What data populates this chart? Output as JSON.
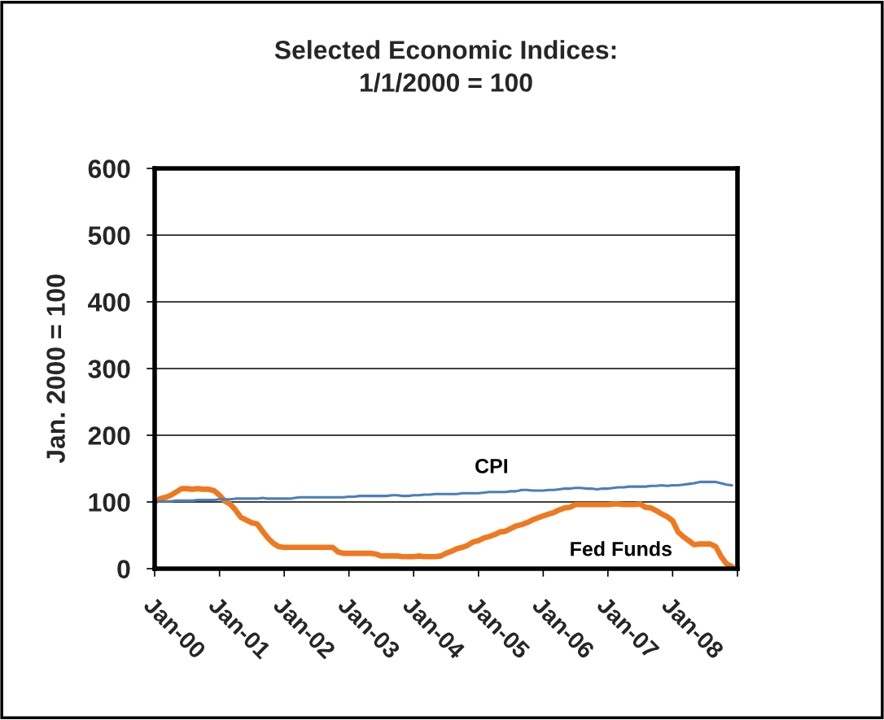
{
  "chart_data": {
    "type": "line",
    "title": "Selected Economic Indices:\n1/1/2000 = 100",
    "ylabel": "Jan. 2000 = 100",
    "x": [
      "2000-01",
      "2000-02",
      "2000-03",
      "2000-04",
      "2000-05",
      "2000-06",
      "2000-07",
      "2000-08",
      "2000-09",
      "2000-10",
      "2000-11",
      "2000-12",
      "2001-01",
      "2001-02",
      "2001-03",
      "2001-04",
      "2001-05",
      "2001-06",
      "2001-07",
      "2001-08",
      "2001-09",
      "2001-10",
      "2001-11",
      "2001-12",
      "2002-01",
      "2002-02",
      "2002-03",
      "2002-04",
      "2002-05",
      "2002-06",
      "2002-07",
      "2002-08",
      "2002-09",
      "2002-10",
      "2002-11",
      "2002-12",
      "2003-01",
      "2003-02",
      "2003-03",
      "2003-04",
      "2003-05",
      "2003-06",
      "2003-07",
      "2003-08",
      "2003-09",
      "2003-10",
      "2003-11",
      "2003-12",
      "2004-01",
      "2004-02",
      "2004-03",
      "2004-04",
      "2004-05",
      "2004-06",
      "2004-07",
      "2004-08",
      "2004-09",
      "2004-10",
      "2004-11",
      "2004-12",
      "2005-01",
      "2005-02",
      "2005-03",
      "2005-04",
      "2005-05",
      "2005-06",
      "2005-07",
      "2005-08",
      "2005-09",
      "2005-10",
      "2005-11",
      "2005-12",
      "2006-01",
      "2006-02",
      "2006-03",
      "2006-04",
      "2006-05",
      "2006-06",
      "2006-07",
      "2006-08",
      "2006-09",
      "2006-10",
      "2006-11",
      "2006-12",
      "2007-01",
      "2007-02",
      "2007-03",
      "2007-04",
      "2007-05",
      "2007-06",
      "2007-07",
      "2007-08",
      "2007-09",
      "2007-10",
      "2007-11",
      "2007-12",
      "2008-01",
      "2008-02",
      "2008-03",
      "2008-04",
      "2008-05",
      "2008-06",
      "2008-07",
      "2008-08",
      "2008-09",
      "2008-10",
      "2008-11",
      "2008-12"
    ],
    "series": [
      {
        "name": "Fed Funds",
        "color": "#f0781e",
        "values": [
          100,
          105,
          107,
          110,
          115,
          120,
          120,
          119,
          120,
          119,
          119,
          117,
          110,
          101,
          97,
          88,
          77,
          73,
          69,
          67,
          56,
          46,
          38,
          33,
          32,
          32,
          32,
          32,
          32,
          32,
          32,
          32,
          32,
          32,
          25,
          23,
          23,
          23,
          23,
          23,
          23,
          22,
          19,
          19,
          19,
          19,
          18,
          18,
          18,
          19,
          18,
          18,
          18,
          19,
          23,
          26,
          30,
          32,
          35,
          40,
          42,
          46,
          48,
          51,
          55,
          56,
          60,
          64,
          66,
          69,
          73,
          76,
          79,
          82,
          84,
          88,
          91,
          92,
          96,
          96,
          96,
          96,
          96,
          96,
          96,
          97,
          97,
          96,
          96,
          96,
          97,
          92,
          91,
          87,
          82,
          78,
          72,
          55,
          48,
          42,
          36,
          37,
          37,
          37,
          33,
          18,
          7,
          3
        ]
      },
      {
        "name": "CPI",
        "color": "#4a7ebb",
        "values": [
          100,
          101,
          101,
          101,
          102,
          102,
          102,
          102,
          103,
          103,
          103,
          103,
          104,
          104,
          104,
          105,
          105,
          105,
          105,
          105,
          106,
          105,
          105,
          105,
          105,
          105,
          106,
          107,
          107,
          107,
          107,
          107,
          107,
          107,
          107,
          107,
          108,
          108,
          109,
          109,
          109,
          109,
          109,
          109,
          110,
          110,
          109,
          109,
          110,
          110,
          111,
          111,
          112,
          112,
          112,
          112,
          112,
          113,
          113,
          113,
          113,
          114,
          115,
          115,
          115,
          115,
          116,
          116,
          118,
          118,
          117,
          117,
          117,
          118,
          118,
          119,
          120,
          120,
          121,
          121,
          120,
          120,
          119,
          120,
          120,
          121,
          122,
          122,
          123,
          123,
          123,
          123,
          124,
          124,
          125,
          124,
          125,
          125,
          126,
          127,
          128,
          130,
          130,
          130,
          130,
          128,
          126,
          125
        ]
      }
    ],
    "xlim": [
      "2000-01",
      "2009-01"
    ],
    "xticks": [
      {
        "value": "2000-01",
        "label": "Jan-00"
      },
      {
        "value": "2001-01",
        "label": "Jan-01"
      },
      {
        "value": "2002-01",
        "label": "Jan-02"
      },
      {
        "value": "2003-01",
        "label": "Jan-03"
      },
      {
        "value": "2004-01",
        "label": "Jan-04"
      },
      {
        "value": "2005-01",
        "label": "Jan-05"
      },
      {
        "value": "2006-01",
        "label": "Jan-06"
      },
      {
        "value": "2007-01",
        "label": "Jan-07"
      },
      {
        "value": "2008-01",
        "label": "Jan-08"
      },
      {
        "value": "2009-01",
        "label": null
      }
    ],
    "ylim": [
      0,
      600
    ],
    "yticks": [
      0,
      100,
      200,
      300,
      400,
      500,
      600
    ],
    "grid": "y",
    "line_style": "solid"
  }
}
